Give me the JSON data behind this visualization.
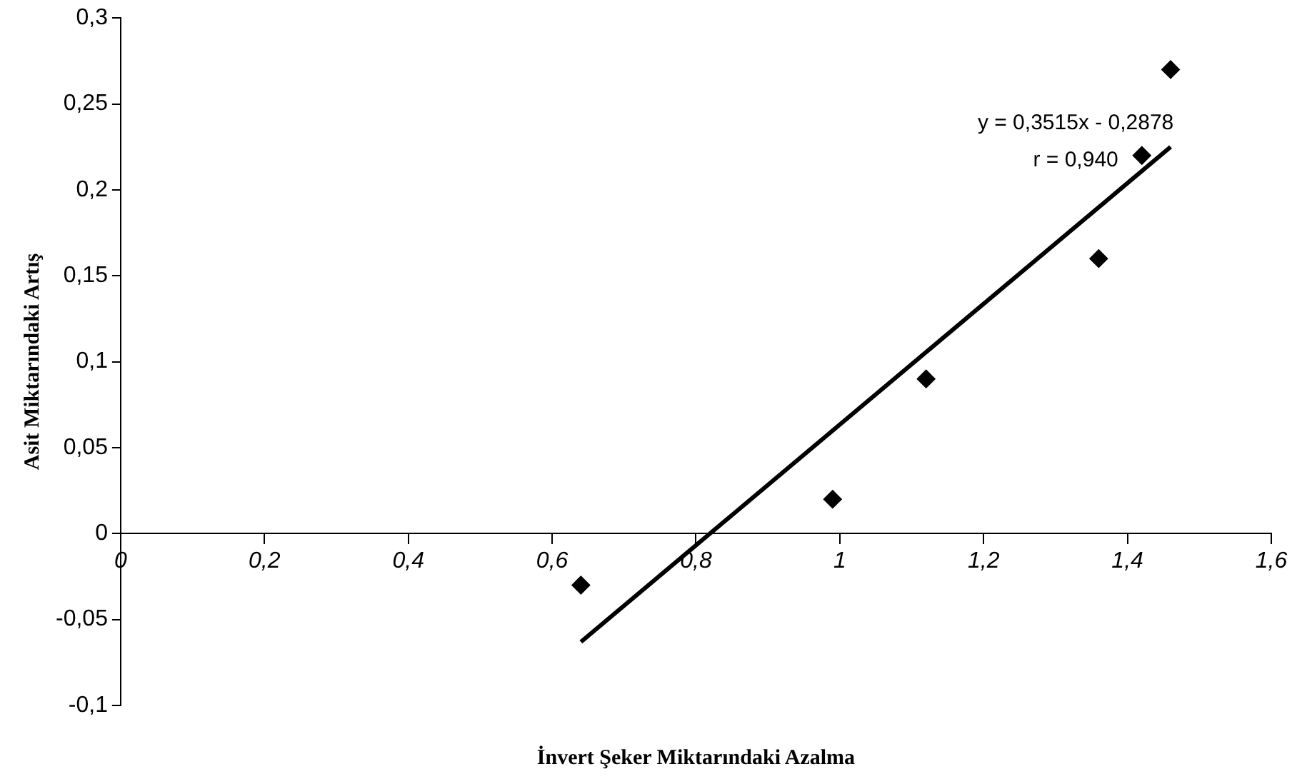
{
  "chart_data": {
    "type": "scatter",
    "xlabel": "İnvert Şeker Miktarındaki Azalma",
    "ylabel": "Asit Miktarındaki Artış",
    "marker": "diamond",
    "xlim": [
      0,
      1.6
    ],
    "xticks": [
      0,
      {
        "value": 0.2,
        "label": "0,2"
      },
      {
        "value": 0.4,
        "label": "0,4"
      },
      {
        "value": 0.6,
        "label": "0,6"
      },
      {
        "value": 0.8,
        "label": "0,8"
      },
      1,
      {
        "value": 1.2,
        "label": "1,2"
      },
      {
        "value": 1.4,
        "label": "1,4"
      },
      {
        "value": 1.6,
        "label": "1,6"
      }
    ],
    "ylim": [
      -0.1,
      0.3
    ],
    "yticks": [
      {
        "value": -0.1,
        "label": "-0,1"
      },
      {
        "value": -0.05,
        "label": "-0,05"
      },
      0,
      {
        "value": 0.05,
        "label": "0,05"
      },
      {
        "value": 0.1,
        "label": "0,1"
      },
      {
        "value": 0.15,
        "label": "0,15"
      },
      {
        "value": 0.2,
        "label": "0,2"
      },
      {
        "value": 0.25,
        "label": "0,25"
      },
      {
        "value": 0.3,
        "label": "0,3"
      }
    ],
    "annotations": [
      "y = 0,3515x - 0,2878",
      "r = 0,940"
    ],
    "series": [
      {
        "color": "#000000",
        "x": [
          0.64,
          0.99,
          1.12,
          1.36,
          1.42,
          1.46
        ],
        "values": [
          -0.03,
          0.02,
          0.09,
          0.16,
          0.22,
          0.27
        ]
      },
      {
        "type": "line",
        "color": "#000000",
        "marker": "none",
        "x": [
          0.64,
          1.46
        ],
        "values": [
          -0.063,
          0.225
        ]
      }
    ]
  }
}
